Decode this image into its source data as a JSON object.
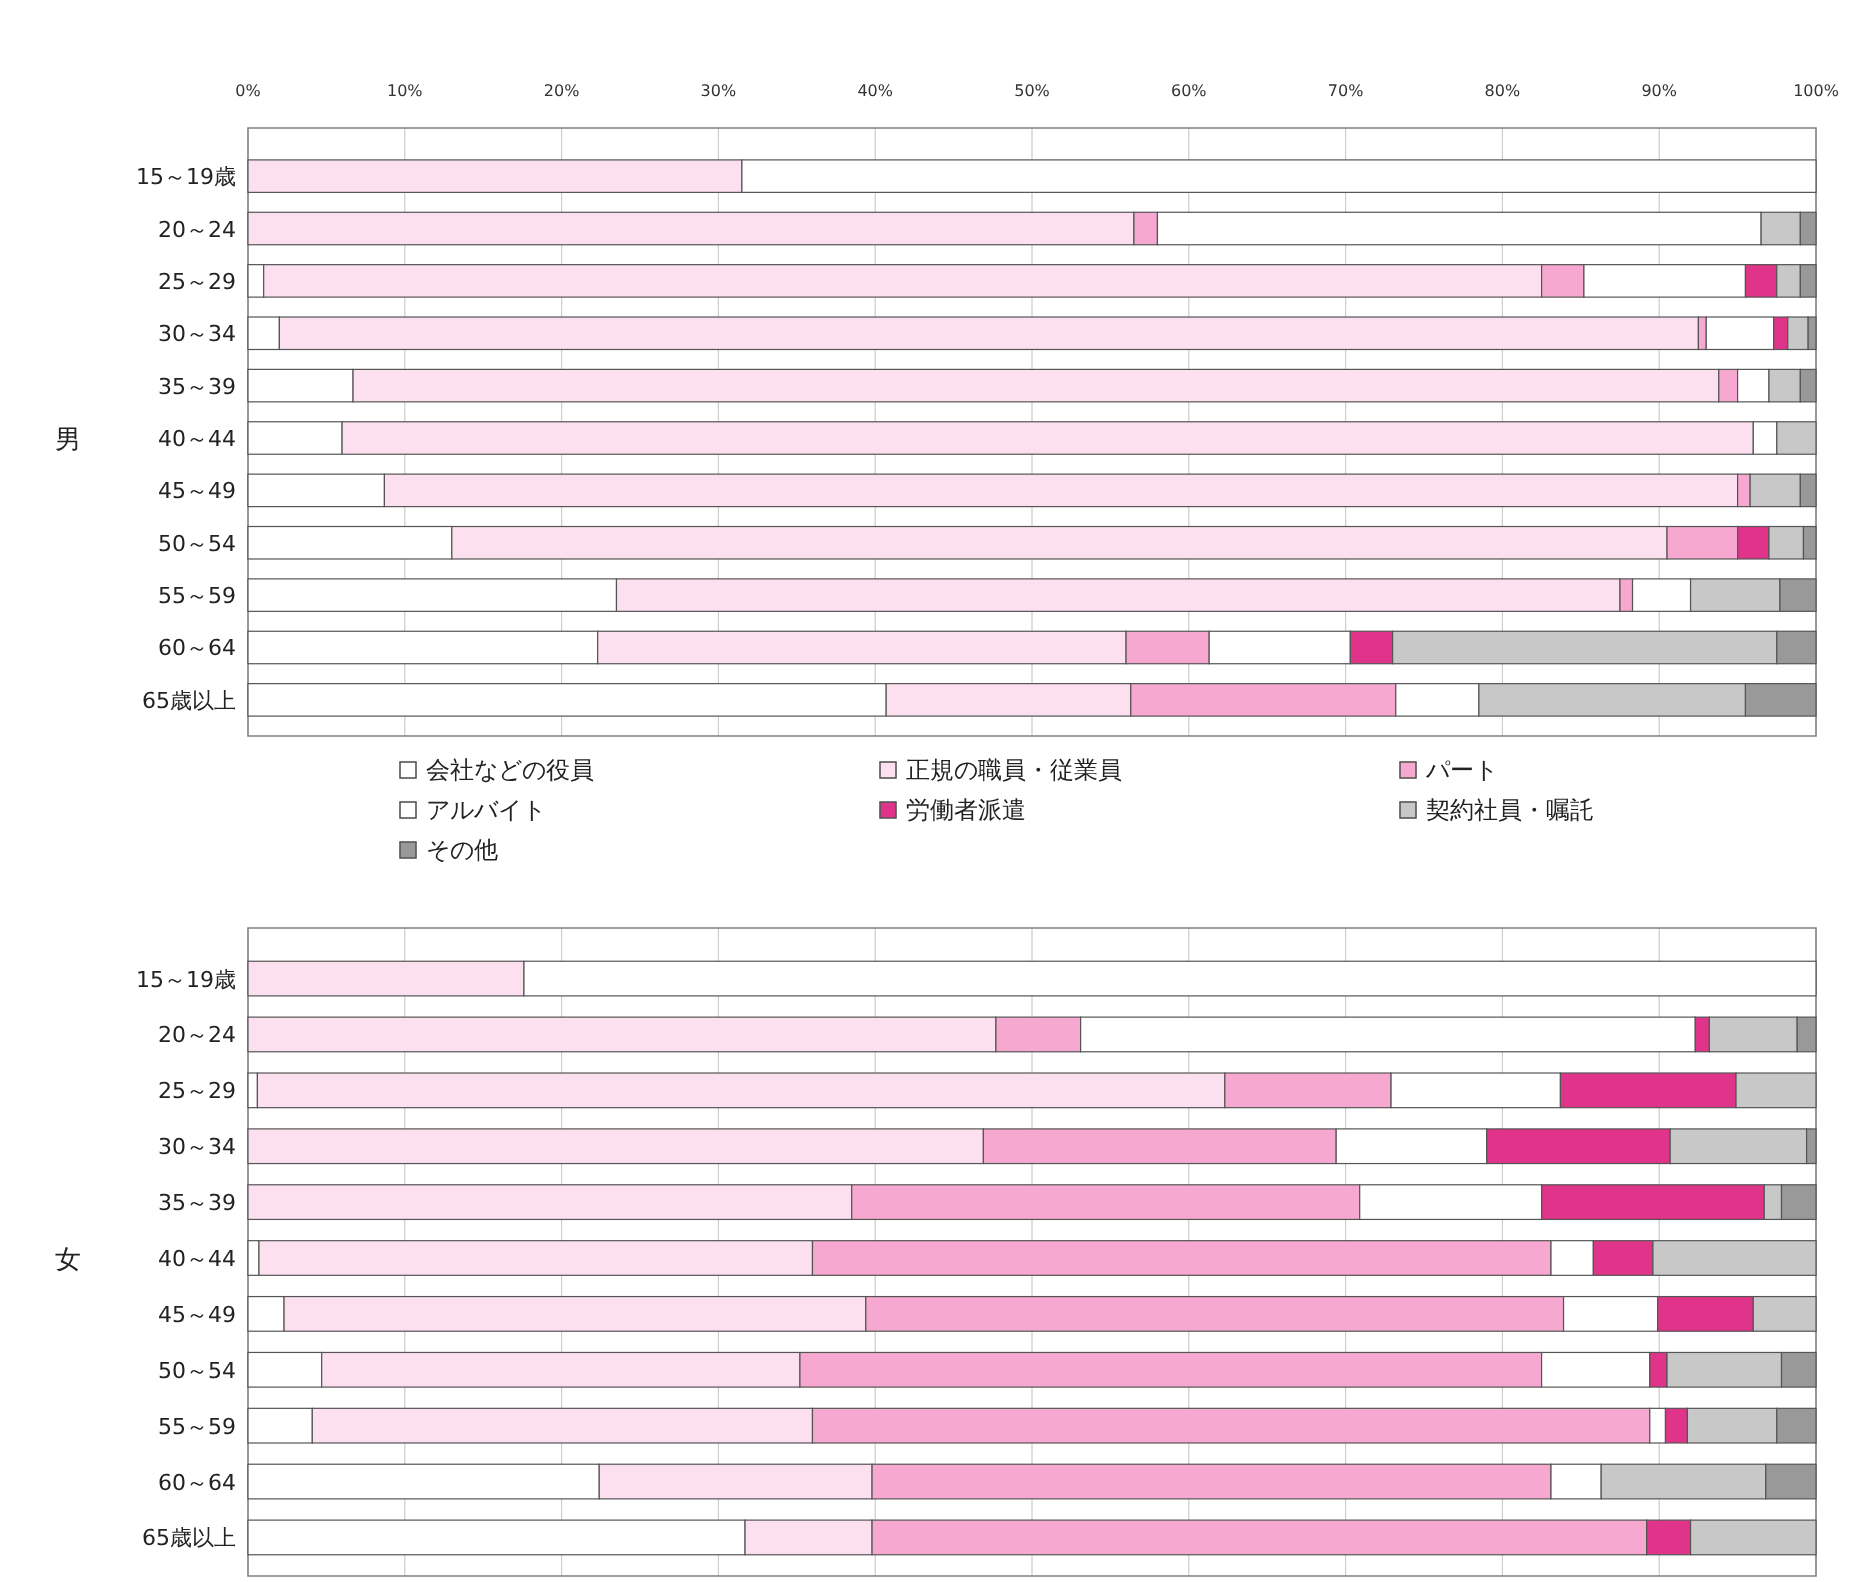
{
  "chart_data": [
    {
      "type": "bar",
      "orientation": "horizontal",
      "stacked": true,
      "ylabel": "男",
      "categories": [
        "15～19歳",
        "20～24",
        "25～29",
        "30～34",
        "35～39",
        "40～44",
        "45～49",
        "50～54",
        "55～59",
        "60～64",
        "65歳以上"
      ],
      "xlim": [
        0,
        100
      ],
      "xticks": [
        {
          "value": 0,
          "label": "0%"
        },
        {
          "value": 10,
          "label": "10%"
        },
        {
          "value": 20,
          "label": "20%"
        },
        {
          "value": 30,
          "label": "30%"
        },
        {
          "value": 40,
          "label": "40%"
        },
        {
          "value": 50,
          "label": "50%"
        },
        {
          "value": 60,
          "label": "60%"
        },
        {
          "value": 70,
          "label": "70%"
        },
        {
          "value": 80,
          "label": "80%"
        },
        {
          "value": 90,
          "label": "90%"
        },
        {
          "value": 100,
          "label": "100%"
        }
      ],
      "grid": "x",
      "legend": "bottom",
      "series": [
        {
          "name": "会社などの役員",
          "color": "#ffffff",
          "values": [
            0,
            0,
            1,
            2,
            6.7,
            6,
            8.7,
            13,
            23.5,
            22.3,
            40.7
          ]
        },
        {
          "name": "正規の職員・従業員",
          "color": "#fde0f0",
          "values": [
            31.5,
            56.5,
            81.5,
            90.5,
            87.1,
            90,
            86.3,
            77.5,
            64,
            33.7,
            15.6
          ]
        },
        {
          "name": "パート",
          "color": "#f7a8d0",
          "values": [
            0,
            1.5,
            2.7,
            0.5,
            1.2,
            0,
            0.8,
            4.5,
            0.8,
            5.3,
            16.9
          ]
        },
        {
          "name": "アルバイト",
          "color": "#ffffff",
          "values": [
            68.5,
            38.5,
            10.3,
            4.3,
            2,
            1.5,
            0,
            0,
            3.7,
            9,
            5.3
          ]
        },
        {
          "name": "労働者派遣",
          "color": "#e0338a",
          "values": [
            0,
            0,
            2,
            0.9,
            0,
            0,
            0,
            2,
            0,
            2.7,
            0
          ]
        },
        {
          "name": "契約社員・嘱託",
          "color": "#c8c8c8",
          "values": [
            0,
            2.5,
            1.5,
            1.3,
            2,
            2.5,
            3.2,
            2.2,
            5.7,
            24.5,
            17
          ]
        },
        {
          "name": "その他",
          "color": "#999999",
          "values": [
            0,
            1,
            1,
            0.5,
            1,
            0,
            1,
            0.8,
            2.3,
            2.5,
            4.5
          ]
        }
      ]
    },
    {
      "type": "bar",
      "orientation": "horizontal",
      "stacked": true,
      "ylabel": "女",
      "tick_labels": "y",
      "categories": [
        "15～19歳",
        "20～24",
        "25～29",
        "30～34",
        "35～39",
        "40～44",
        "45～49",
        "50～54",
        "55～59",
        "60～64",
        "65歳以上"
      ],
      "xlim": [
        0,
        100
      ],
      "xticks": [
        {
          "value": 0,
          "label": null
        },
        {
          "value": 10,
          "label": null
        },
        {
          "value": 20,
          "label": null
        },
        {
          "value": 30,
          "label": null
        },
        {
          "value": 40,
          "label": null
        },
        {
          "value": 50,
          "label": null
        },
        {
          "value": 60,
          "label": null
        },
        {
          "value": 70,
          "label": null
        },
        {
          "value": 80,
          "label": null
        },
        {
          "value": 90,
          "label": null
        },
        {
          "value": 100,
          "label": null
        }
      ],
      "grid": "x",
      "series": [
        {
          "color": "#ffffff",
          "values": [
            0,
            0,
            0.6,
            0,
            0,
            0.7,
            2.3,
            4.7,
            4.1,
            22.4,
            31.7
          ]
        },
        {
          "color": "#fde0f0",
          "values": [
            17.6,
            47.7,
            61.7,
            46.9,
            38.5,
            35.3,
            37.1,
            30.5,
            31.9,
            17.4,
            8.1
          ]
        },
        {
          "color": "#f7a8d0",
          "values": [
            0,
            5.4,
            10.6,
            22.5,
            32.4,
            47.1,
            44.5,
            47.3,
            53.4,
            43.3,
            49.4
          ]
        },
        {
          "color": "#ffffff",
          "values": [
            82.4,
            39.2,
            10.8,
            9.6,
            11.6,
            2.7,
            6,
            6.9,
            1,
            3.2,
            0
          ]
        },
        {
          "color": "#e0338a",
          "values": [
            0,
            0.9,
            11.2,
            11.7,
            14.2,
            3.8,
            6.1,
            1.1,
            1.4,
            0,
            2.8
          ]
        },
        {
          "color": "#c8c8c8",
          "values": [
            0,
            5.6,
            5.1,
            8.7,
            1.1,
            10.4,
            4,
            7.3,
            5.7,
            10.5,
            8
          ]
        },
        {
          "color": "#999999",
          "values": [
            0,
            1.2,
            0,
            0.6,
            2.2,
            0,
            0,
            2.2,
            2.5,
            3.2,
            0
          ]
        }
      ]
    }
  ]
}
